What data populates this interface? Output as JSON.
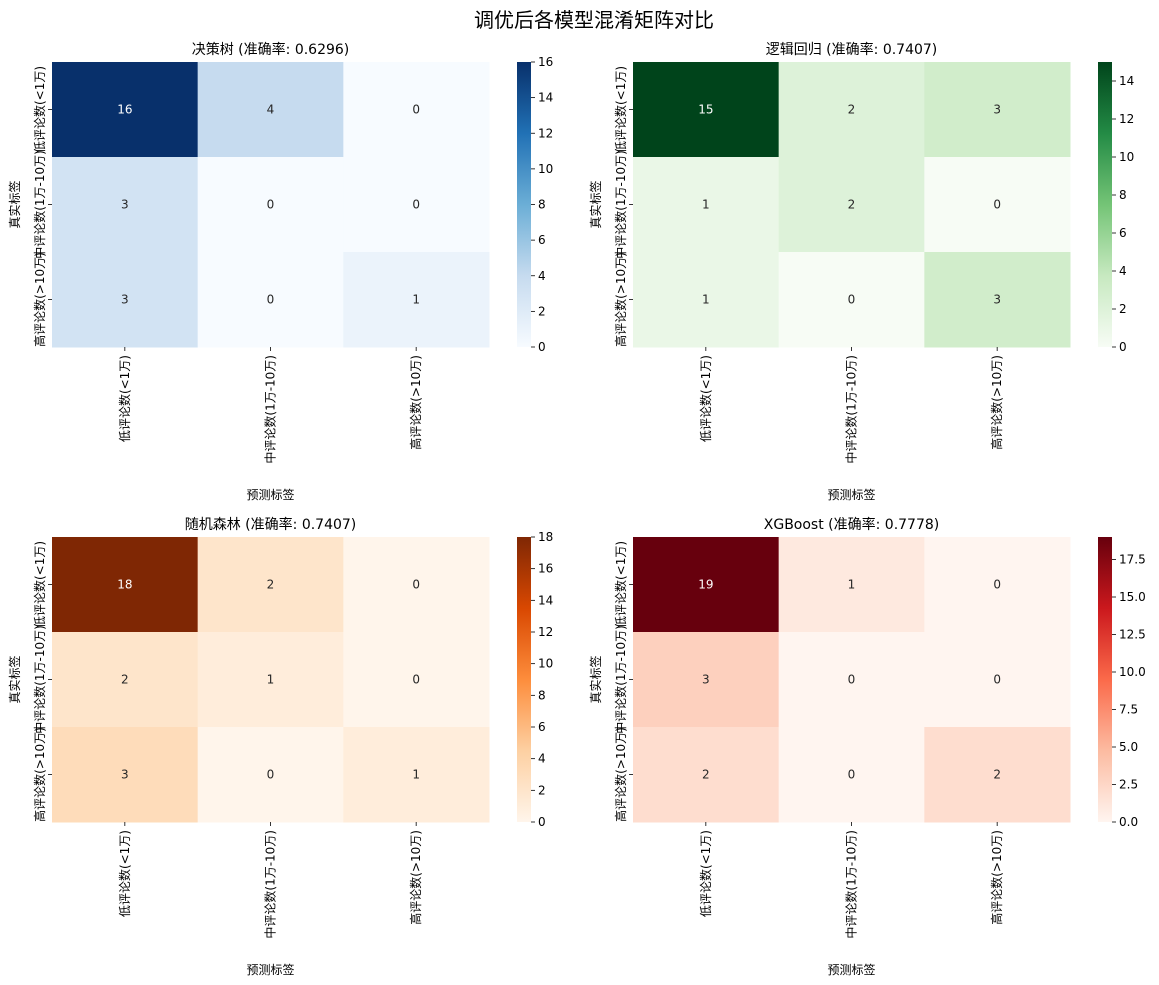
{
  "figure": {
    "title": "调优后各模型混淆矩阵对比"
  },
  "chart_data": [
    {
      "type": "heatmap",
      "title": "决策树 (准确率: 0.6296)",
      "xlabel": "预测标签",
      "ylabel": "真实标签",
      "categories": [
        "低评论数(<1万)",
        "中评论数(1万-10万)",
        "高评论数(>10万)"
      ],
      "matrix": [
        [
          16,
          4,
          0
        ],
        [
          3,
          0,
          0
        ],
        [
          3,
          0,
          1
        ]
      ],
      "colormap": "Blues",
      "colors": [
        "#f7fbff",
        "#c6dbef",
        "#6baed6",
        "#2171b5",
        "#08306b"
      ],
      "vmin": 0,
      "vmax": 16,
      "colorbar_ticks": [
        0,
        2,
        4,
        6,
        8,
        10,
        12,
        14,
        16
      ],
      "colorbar_tick_labels": [
        "0",
        "2",
        "4",
        "6",
        "8",
        "10",
        "12",
        "14",
        "16"
      ]
    },
    {
      "type": "heatmap",
      "title": "逻辑回归 (准确率: 0.7407)",
      "xlabel": "预测标签",
      "ylabel": "真实标签",
      "categories": [
        "低评论数(<1万)",
        "中评论数(1万-10万)",
        "高评论数(>10万)"
      ],
      "matrix": [
        [
          15,
          2,
          3
        ],
        [
          1,
          2,
          0
        ],
        [
          1,
          0,
          3
        ]
      ],
      "colormap": "Greens",
      "colors": [
        "#f7fcf5",
        "#c7e9c0",
        "#74c476",
        "#238b45",
        "#00441b"
      ],
      "vmin": 0,
      "vmax": 15,
      "colorbar_ticks": [
        0,
        2,
        4,
        6,
        8,
        10,
        12,
        14
      ],
      "colorbar_tick_labels": [
        "0",
        "2",
        "4",
        "6",
        "8",
        "10",
        "12",
        "14"
      ]
    },
    {
      "type": "heatmap",
      "title": "随机森林 (准确率: 0.7407)",
      "xlabel": "预测标签",
      "ylabel": "真实标签",
      "categories": [
        "低评论数(<1万)",
        "中评论数(1万-10万)",
        "高评论数(>10万)"
      ],
      "matrix": [
        [
          18,
          2,
          0
        ],
        [
          2,
          1,
          0
        ],
        [
          3,
          0,
          1
        ]
      ],
      "colormap": "Oranges",
      "colors": [
        "#fff5eb",
        "#fdd0a2",
        "#fd8d3c",
        "#d94801",
        "#7f2704"
      ],
      "vmin": 0,
      "vmax": 18,
      "colorbar_ticks": [
        0,
        2,
        4,
        6,
        8,
        10,
        12,
        14,
        16,
        18
      ],
      "colorbar_tick_labels": [
        "0",
        "2",
        "4",
        "6",
        "8",
        "10",
        "12",
        "14",
        "16",
        "18"
      ]
    },
    {
      "type": "heatmap",
      "title": "XGBoost (准确率: 0.7778)",
      "xlabel": "预测标签",
      "ylabel": "真实标签",
      "categories": [
        "低评论数(<1万)",
        "中评论数(1万-10万)",
        "高评论数(>10万)"
      ],
      "matrix": [
        [
          19,
          1,
          0
        ],
        [
          3,
          0,
          0
        ],
        [
          2,
          0,
          2
        ]
      ],
      "colormap": "Reds",
      "colors": [
        "#fff5f0",
        "#fcbba1",
        "#fb6a4a",
        "#cb181d",
        "#67000d"
      ],
      "vmin": 0,
      "vmax": 19,
      "colorbar_ticks": [
        0,
        2.5,
        5,
        7.5,
        10,
        12.5,
        15,
        17.5
      ],
      "colorbar_tick_labels": [
        "0.0",
        "2.5",
        "5.0",
        "7.5",
        "10.0",
        "12.5",
        "15.0",
        "17.5"
      ]
    }
  ]
}
